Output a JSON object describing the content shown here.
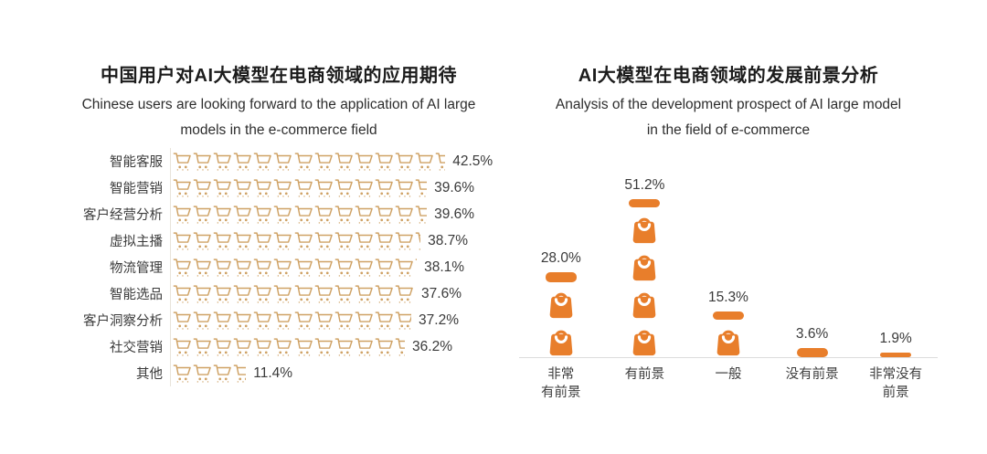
{
  "colors": {
    "cart_outline": "#CFA265",
    "bag_fill": "#E87E2B",
    "axis_line": "#DCDCDC",
    "text_dark": "#1C1C1C",
    "text_body": "#3A3A3A"
  },
  "chart_data": [
    {
      "type": "bar",
      "subtype": "pictogram",
      "orientation": "horizontal",
      "icon": "shopping-cart",
      "icon_unit_percent": 3.15,
      "title": "中国用户对AI大模型在电商领域的应用期待",
      "subtitle": "Chinese users are looking forward to the application of AI large models in the e-commerce field",
      "subtitle_lines": [
        "Chinese users are looking forward to the application of AI large",
        "models in the e-commerce field"
      ],
      "categories": [
        "智能客服",
        "智能营销",
        "客户经营分析",
        "虚拟主播",
        "物流管理",
        "智能选品",
        "客户洞察分析",
        "社交营销",
        "其他"
      ],
      "values": [
        42.5,
        39.6,
        39.6,
        38.7,
        38.1,
        37.6,
        37.2,
        36.2,
        11.4
      ],
      "value_suffix": "%",
      "xlim": [
        0,
        45
      ],
      "grid": false,
      "legend": false
    },
    {
      "type": "bar",
      "subtype": "pictogram",
      "orientation": "vertical",
      "icon": "shopping-bag",
      "icon_unit_percent": 12,
      "title": "AI大模型在电商领域的发展前景分析",
      "subtitle": "Analysis of the development prospect of AI large model in the field of e-commerce",
      "subtitle_lines": [
        "Analysis of the development prospect of AI large model",
        "in the field of e-commerce"
      ],
      "categories": [
        "非常有前景",
        "有前景",
        "一般",
        "没有前景",
        "非常没有前景"
      ],
      "category_lines": [
        [
          "非常",
          "有前景"
        ],
        [
          "有前景"
        ],
        [
          "一般"
        ],
        [
          "没有前景"
        ],
        [
          "非常没有",
          "前景"
        ]
      ],
      "values": [
        28.0,
        51.2,
        15.3,
        3.6,
        1.9
      ],
      "value_suffix": "%",
      "ylim": [
        0,
        55
      ],
      "grid": false,
      "legend": false
    }
  ]
}
